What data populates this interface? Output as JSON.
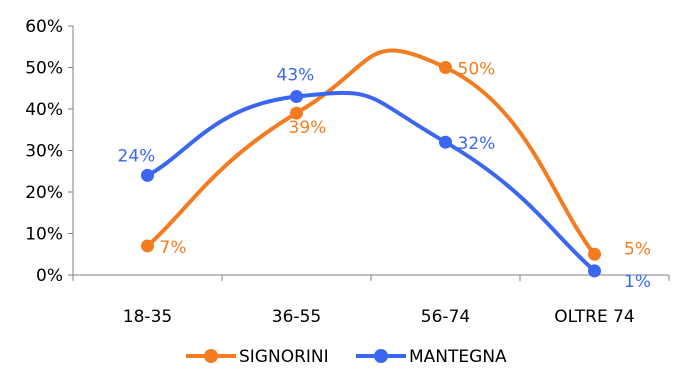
{
  "chart_data": {
    "type": "line",
    "categories": [
      "18-35",
      "36-55",
      "56-74",
      "OLTRE 74"
    ],
    "ylim": [
      0,
      60
    ],
    "yticks": [
      0,
      10,
      20,
      30,
      40,
      50,
      60
    ],
    "ytick_labels": [
      "0%",
      "10%",
      "20%",
      "30%",
      "40%",
      "50%",
      "60%"
    ],
    "grid": false,
    "legend_position": "bottom",
    "smooth": true,
    "series": [
      {
        "name": "SIGNORINI",
        "color": "#F47B20",
        "values": [
          7,
          39,
          50,
          5
        ],
        "labels": [
          "7%",
          "39%",
          "50%",
          "5%"
        ]
      },
      {
        "name": "MANTEGNA",
        "color": "#3A66F0",
        "values": [
          24,
          43,
          32,
          1
        ],
        "labels": [
          "24%",
          "43%",
          "32%",
          "1%"
        ]
      }
    ]
  }
}
